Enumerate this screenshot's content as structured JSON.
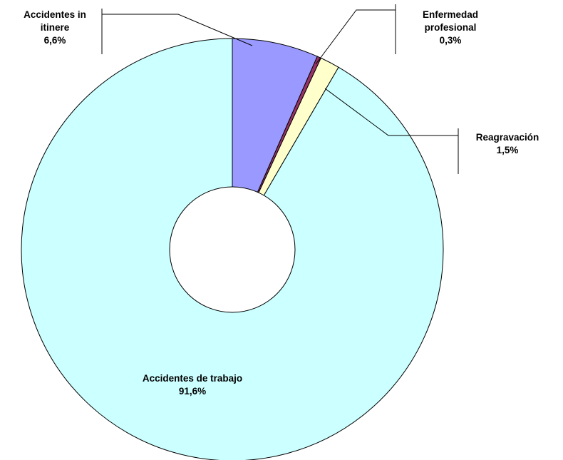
{
  "chart_data": {
    "type": "pie",
    "variant": "donut",
    "title": "",
    "slices": [
      {
        "name": "Accidentes in itinere",
        "label_lines": [
          "Accidentes in",
          "itinere"
        ],
        "value": 6.6,
        "value_label": "6,6%",
        "color": "#9999ff"
      },
      {
        "name": "Enfermedad profesional",
        "label_lines": [
          "Enfermedad",
          "profesional"
        ],
        "value": 0.3,
        "value_label": "0,3%",
        "color": "#993366"
      },
      {
        "name": "Reagravación",
        "label_lines": [
          "Reagravación"
        ],
        "value": 1.5,
        "value_label": "1,5%",
        "color": "#ffffcc"
      },
      {
        "name": "Accidentes de trabajo",
        "label_lines": [
          "Accidentes de trabajo"
        ],
        "value": 91.6,
        "value_label": "91,6%",
        "color": "#ccffff"
      }
    ],
    "start_angle_deg": 0,
    "direction": "clockwise",
    "slice_stroke_color": "#000000"
  }
}
